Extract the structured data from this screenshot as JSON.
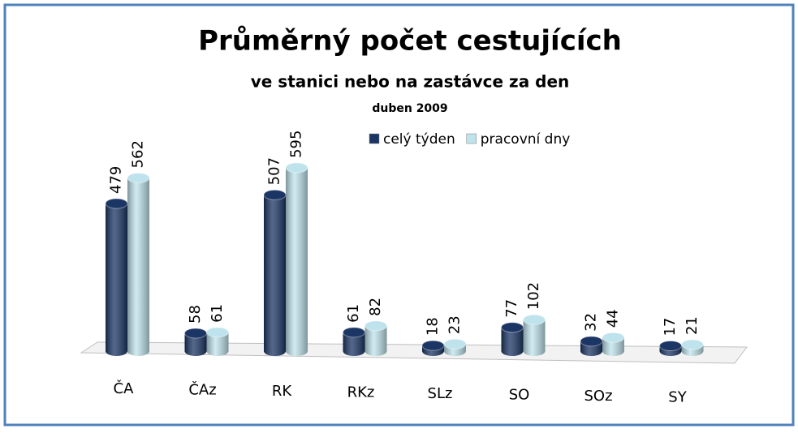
{
  "chart_data": {
    "type": "bar",
    "title": "Průměrný počet cestujících",
    "subtitle": "ve stanici nebo na zastávce za den",
    "period": "duben 2009",
    "categories": [
      "ČA",
      "ČAz",
      "RK",
      "RKz",
      "SLz",
      "SO",
      "SOz",
      "SY"
    ],
    "series": [
      {
        "name": "celý týden",
        "color": "#1b3564",
        "values": [
          479,
          58,
          507,
          61,
          18,
          77,
          32,
          17
        ]
      },
      {
        "name": "pracovní dny",
        "color": "#bfe3ec",
        "values": [
          562,
          61,
          595,
          82,
          23,
          102,
          44,
          21
        ]
      }
    ]
  }
}
